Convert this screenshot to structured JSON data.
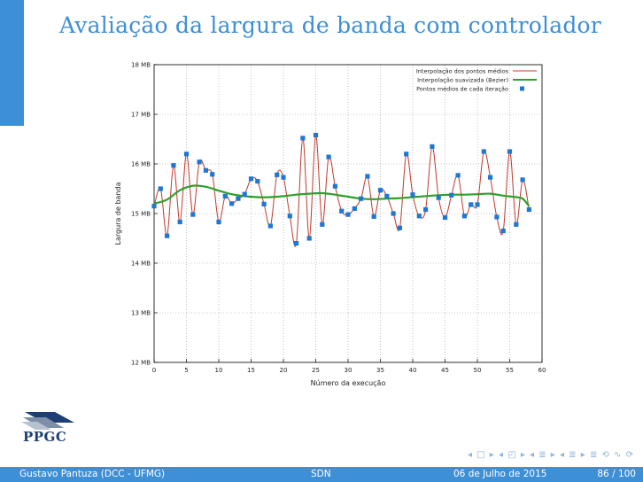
{
  "slide": {
    "title": "Avaliação da largura de banda com controlador",
    "logo_text": "PPGC",
    "nav_symbols": "◂ □ ▸ ◂ ◰ ▸ ◂ ≣ ▸ ◂ ≣ ▸   ≣   ⟲ ∿ ⟳"
  },
  "footer": {
    "author": "Gustavo Pantuza (DCC - UFMG)",
    "short_title": "SDN",
    "date": "06 de Julho de 2015",
    "page": "86 / 100"
  },
  "colors": {
    "accent": "#3d8fd6",
    "interp_line": "#c0392b",
    "bezier_line": "#2ca02c",
    "points": "#1f77d4"
  },
  "chart_data": {
    "type": "line",
    "title": "",
    "xlabel": "Número da execução",
    "ylabel": "Largura de banda",
    "xlim": [
      0,
      60
    ],
    "ylim": [
      12,
      18
    ],
    "x_ticks": [
      0,
      5,
      10,
      15,
      20,
      25,
      30,
      35,
      40,
      45,
      50,
      55,
      60
    ],
    "x_tick_labels": [
      "0",
      "5",
      "10",
      "15",
      "20",
      "25",
      "30",
      "35",
      "40",
      "45",
      "50",
      "55",
      "60"
    ],
    "y_ticks": [
      12,
      13,
      14,
      15,
      16,
      17,
      18
    ],
    "y_tick_labels": [
      "12 MB",
      "13 MB",
      "14 MB",
      "15 MB",
      "16 MB",
      "17 MB",
      "18 MB"
    ],
    "grid": "dotted",
    "legend_position": "top-right",
    "series": [
      {
        "name": "Interpolação dos pontos médios",
        "style": "line",
        "x": [
          0,
          1,
          2,
          3,
          4,
          5,
          6,
          7,
          8,
          9,
          10,
          11,
          12,
          13,
          14,
          15,
          16,
          17,
          18,
          19,
          20,
          21,
          22,
          23,
          24,
          25,
          26,
          27,
          28,
          29,
          30,
          31,
          32,
          33,
          34,
          35,
          36,
          37,
          38,
          39,
          40,
          41,
          42,
          43,
          44,
          45,
          46,
          47,
          48,
          49,
          50,
          51,
          52,
          53,
          54,
          55,
          56,
          57,
          58
        ],
        "y": [
          15.15,
          15.5,
          14.55,
          15.97,
          14.83,
          16.2,
          14.98,
          16.04,
          15.87,
          15.79,
          14.83,
          15.35,
          15.2,
          15.3,
          15.39,
          15.7,
          15.65,
          15.19,
          14.75,
          15.78,
          15.73,
          14.95,
          14.4,
          16.52,
          14.5,
          16.58,
          14.78,
          16.14,
          15.55,
          15.05,
          14.98,
          15.1,
          15.3,
          15.75,
          14.94,
          15.47,
          15.35,
          15.0,
          14.71,
          16.2,
          15.38,
          14.95,
          15.08,
          16.35,
          15.32,
          14.92,
          15.37,
          15.77,
          14.95,
          15.18,
          15.18,
          16.25,
          15.73,
          14.93,
          14.65,
          16.25,
          14.78,
          15.68,
          15.08
        ]
      },
      {
        "name": "Interpolação suavizada (Bezier)",
        "style": "line",
        "x": [
          0,
          2,
          4,
          6,
          8,
          10,
          12,
          14,
          16,
          18,
          20,
          22,
          24,
          26,
          28,
          30,
          32,
          34,
          36,
          38,
          40,
          42,
          44,
          46,
          48,
          50,
          52,
          54,
          56,
          57,
          58
        ],
        "y": [
          15.2,
          15.28,
          15.47,
          15.56,
          15.54,
          15.46,
          15.39,
          15.35,
          15.33,
          15.33,
          15.35,
          15.38,
          15.4,
          15.41,
          15.38,
          15.34,
          15.3,
          15.29,
          15.3,
          15.31,
          15.33,
          15.35,
          15.37,
          15.38,
          15.38,
          15.39,
          15.4,
          15.36,
          15.33,
          15.3,
          15.15
        ]
      },
      {
        "name": "Pontos médios de cada iteração",
        "style": "points",
        "x": [
          0,
          1,
          2,
          3,
          4,
          5,
          6,
          7,
          8,
          9,
          10,
          11,
          12,
          13,
          14,
          15,
          16,
          17,
          18,
          19,
          20,
          21,
          22,
          23,
          24,
          25,
          26,
          27,
          28,
          29,
          30,
          31,
          32,
          33,
          34,
          35,
          36,
          37,
          38,
          39,
          40,
          41,
          42,
          43,
          44,
          45,
          46,
          47,
          48,
          49,
          50,
          51,
          52,
          53,
          54,
          55,
          56,
          57,
          58
        ],
        "y": [
          15.15,
          15.5,
          14.55,
          15.97,
          14.83,
          16.2,
          14.98,
          16.04,
          15.87,
          15.79,
          14.83,
          15.35,
          15.2,
          15.3,
          15.39,
          15.7,
          15.65,
          15.19,
          14.75,
          15.78,
          15.73,
          14.95,
          14.4,
          16.52,
          14.5,
          16.58,
          14.78,
          16.14,
          15.55,
          15.05,
          14.98,
          15.1,
          15.3,
          15.75,
          14.94,
          15.47,
          15.35,
          15.0,
          14.71,
          16.2,
          15.38,
          14.95,
          15.08,
          16.35,
          15.32,
          14.92,
          15.37,
          15.77,
          14.95,
          15.18,
          15.18,
          16.25,
          15.73,
          14.93,
          14.65,
          16.25,
          14.78,
          15.68,
          15.08
        ]
      }
    ]
  }
}
